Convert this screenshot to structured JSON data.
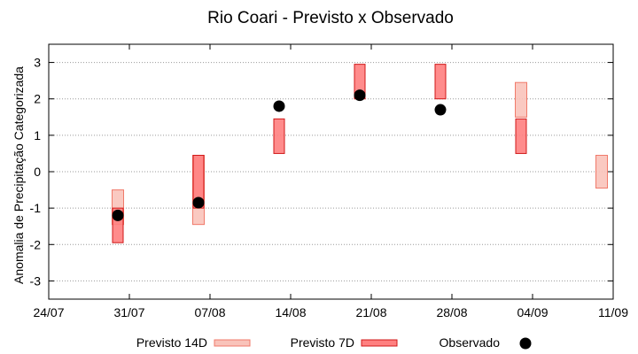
{
  "chart_data": {
    "type": "range_bar_scatter",
    "title": "Rio Coari - Previsto x Observado",
    "xlabel": "",
    "ylabel": "Anomalia de Precipitação Categorizada",
    "x_ticks": [
      "24/07",
      "31/07",
      "07/08",
      "14/08",
      "21/08",
      "28/08",
      "04/09",
      "11/09"
    ],
    "y_ticks": [
      "-3",
      "-2",
      "-1",
      "0",
      "1",
      "2",
      "3"
    ],
    "ylim": [
      -3.5,
      3.5
    ],
    "grid": "horizontal dotted",
    "legend_position": "bottom",
    "colors": {
      "previsto14_fill": "#f9c3ba",
      "previsto14_stroke": "#f07a6a",
      "previsto7_fill": "#ff8080",
      "previsto7_stroke": "#d01818",
      "observado": "#000000"
    },
    "series": [
      {
        "name": "Previsto 14D",
        "kind": "range",
        "points": [
          {
            "x": "30/07",
            "low": -1.45,
            "high": -0.5
          },
          {
            "x": "06/08",
            "low": -1.45,
            "high": 0.45
          },
          {
            "x": "03/09",
            "low": 1.5,
            "high": 2.45
          },
          {
            "x": "10/09",
            "low": -0.45,
            "high": 0.45
          }
        ]
      },
      {
        "name": "Previsto 7D",
        "kind": "range",
        "points": [
          {
            "x": "30/07",
            "low": -1.95,
            "high": -1.0
          },
          {
            "x": "06/08",
            "low": -1.0,
            "high": 0.45
          },
          {
            "x": "13/08",
            "low": 0.5,
            "high": 1.45
          },
          {
            "x": "20/08",
            "low": 2.0,
            "high": 2.95
          },
          {
            "x": "27/08",
            "low": 2.0,
            "high": 2.95
          },
          {
            "x": "03/09",
            "low": 0.5,
            "high": 1.45
          }
        ]
      },
      {
        "name": "Observado",
        "kind": "point",
        "points": [
          {
            "x": "30/07",
            "y": -1.2
          },
          {
            "x": "06/08",
            "y": -0.85
          },
          {
            "x": "13/08",
            "y": 1.8
          },
          {
            "x": "20/08",
            "y": 2.1
          },
          {
            "x": "27/08",
            "y": 1.7
          }
        ]
      }
    ]
  }
}
